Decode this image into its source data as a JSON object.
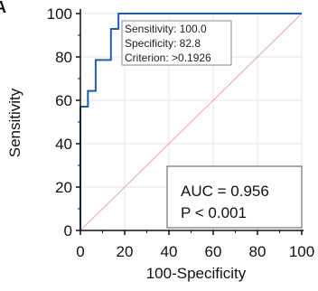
{
  "panel_label": "A",
  "criterion_box": {
    "line1": "Sensitivity: 100.0",
    "line2": "Specificity: 82.8",
    "line3": "Criterion: >0.1926"
  },
  "auc_box": {
    "line1": "AUC = 0.956",
    "line2": "P < 0.001"
  },
  "colors": {
    "roc_curve": "#1f5fa8",
    "reference_line": "#e8a6ad",
    "grid": "#e6e6e6",
    "axis": "#111111"
  },
  "chart_data": {
    "type": "line",
    "xlabel": "100-Specificity",
    "ylabel": "Sensitivity",
    "xlim": [
      0,
      100
    ],
    "ylim": [
      0,
      100
    ],
    "xticks": [
      0,
      20,
      40,
      60,
      80,
      100
    ],
    "yticks": [
      0,
      20,
      40,
      60,
      80,
      100
    ],
    "grid": true,
    "series": [
      {
        "x": [
          0,
          0,
          1.7,
          1.7,
          3.4,
          3.4,
          5.2,
          5.2,
          6.9,
          6.9,
          8.6,
          8.6,
          10.3,
          10.3,
          12.1,
          12.1,
          13.8,
          13.8,
          15.5,
          15.5,
          17.2,
          17.2,
          100
        ],
        "y": [
          0,
          57.1,
          57.1,
          57.1,
          57.1,
          64.3,
          64.3,
          64.3,
          64.3,
          78.6,
          78.6,
          78.6,
          78.6,
          78.6,
          78.6,
          78.6,
          78.6,
          92.9,
          92.9,
          92.9,
          92.9,
          100,
          100
        ]
      },
      {
        "x": [
          0,
          100
        ],
        "y": [
          0,
          100
        ]
      }
    ]
  }
}
